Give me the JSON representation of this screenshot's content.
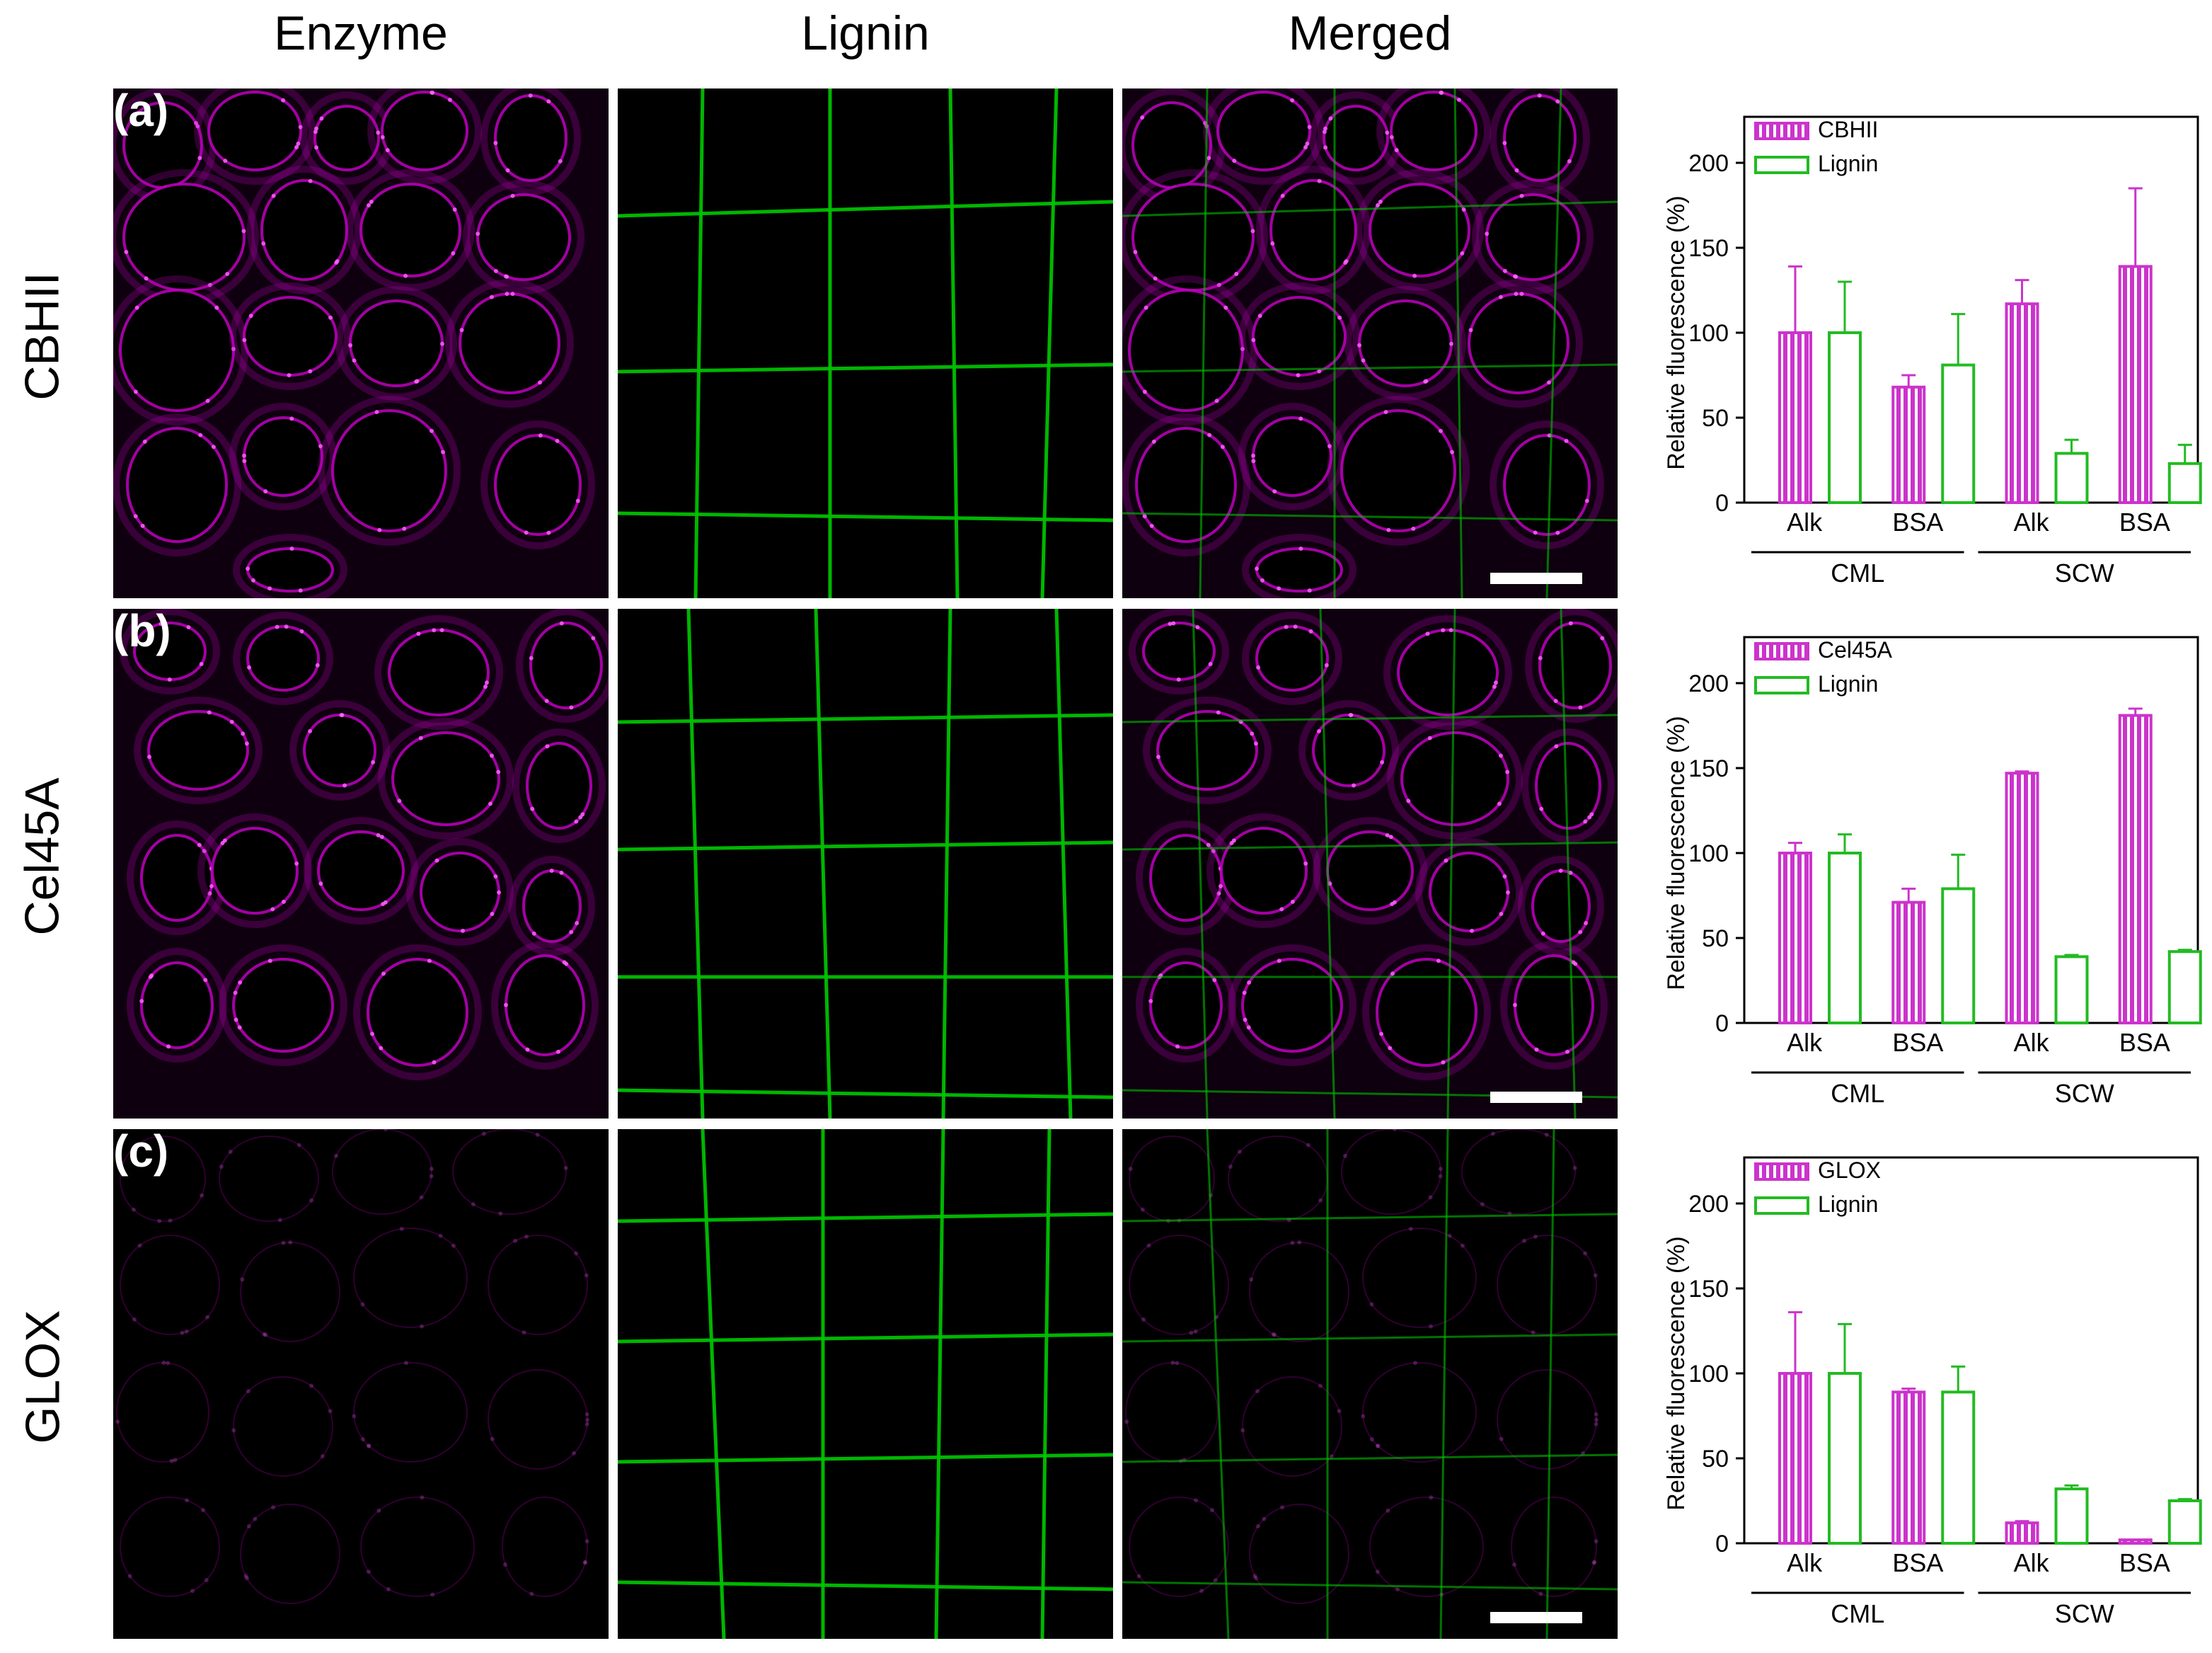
{
  "columns": [
    "Enzyme",
    "Lignin",
    "Merged"
  ],
  "rows": [
    {
      "letter": "(a)",
      "label": "CBHII"
    },
    {
      "letter": "(b)",
      "label": "Cel45A"
    },
    {
      "letter": "(c)",
      "label": "GLOX"
    }
  ],
  "colors": {
    "enzyme": "#c000c0",
    "lignin": "#00c000",
    "enzyme_bar": "#cc33cc",
    "lignin_bar": "#22bb22"
  },
  "chart_data": [
    {
      "type": "bar",
      "ylabel": "Relative fluorescence (%)",
      "ylim": [
        0,
        200
      ],
      "yticks": [
        "0",
        "50",
        "100",
        "150",
        "200"
      ],
      "categories": [
        "Alk",
        "BSA",
        "Alk",
        "BSA"
      ],
      "groups": [
        "CML",
        "SCW"
      ],
      "legend_position": "top-left",
      "series": [
        {
          "name": "CBHII",
          "values": [
            100,
            68,
            117,
            139
          ],
          "errors": [
            39,
            7,
            14,
            46
          ],
          "style": "hatched-magenta"
        },
        {
          "name": "Lignin",
          "values": [
            100,
            81,
            29,
            23
          ],
          "errors": [
            30,
            30,
            8,
            11
          ],
          "style": "open-green"
        }
      ]
    },
    {
      "type": "bar",
      "ylabel": "Relative fluorescence (%)",
      "ylim": [
        0,
        200
      ],
      "yticks": [
        "0",
        "50",
        "100",
        "150",
        "200"
      ],
      "categories": [
        "Alk",
        "BSA",
        "Alk",
        "BSA"
      ],
      "groups": [
        "CML",
        "SCW"
      ],
      "legend_position": "top-left",
      "series": [
        {
          "name": "Cel45A",
          "values": [
            100,
            71,
            147,
            181
          ],
          "errors": [
            6,
            8,
            1,
            4
          ],
          "style": "hatched-magenta"
        },
        {
          "name": "Lignin",
          "values": [
            100,
            79,
            39,
            42
          ],
          "errors": [
            11,
            20,
            1,
            1
          ],
          "style": "open-green"
        }
      ]
    },
    {
      "type": "bar",
      "ylabel": "Relative fluorescence (%)",
      "ylim": [
        0,
        200
      ],
      "yticks": [
        "0",
        "50",
        "100",
        "150",
        "200"
      ],
      "categories": [
        "Alk",
        "BSA",
        "Alk",
        "BSA"
      ],
      "groups": [
        "CML",
        "SCW"
      ],
      "legend_position": "top-left",
      "series": [
        {
          "name": "GLOX",
          "values": [
            100,
            89,
            12,
            2
          ],
          "errors": [
            36,
            2,
            1,
            0
          ],
          "style": "hatched-magenta"
        },
        {
          "name": "Lignin",
          "values": [
            100,
            89,
            32,
            25
          ],
          "errors": [
            29,
            15,
            2,
            1
          ],
          "style": "open-green"
        }
      ]
    }
  ]
}
